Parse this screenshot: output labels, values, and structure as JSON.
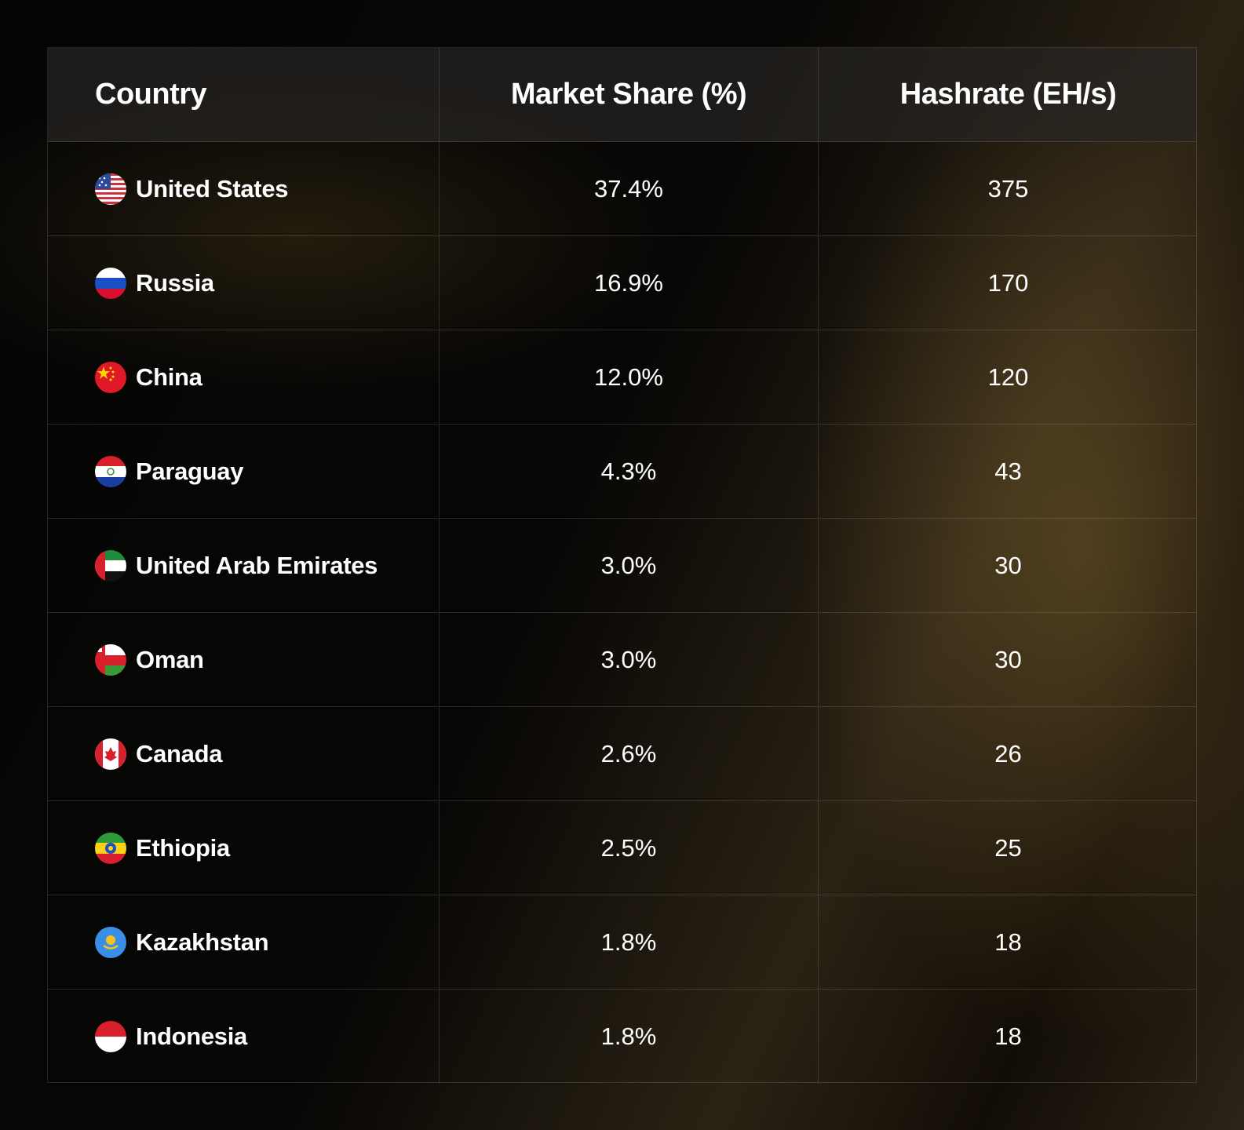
{
  "table": {
    "headers": [
      "Country",
      "Market Share (%)",
      "Hashrate (EH/s)"
    ],
    "rows": [
      [
        "United States",
        "37.4%",
        "375"
      ],
      [
        "Russia",
        "16.9%",
        "170"
      ],
      [
        "China",
        "12.0%",
        "120"
      ],
      [
        "Paraguay",
        "4.3%",
        "43"
      ],
      [
        "United Arab Emirates",
        "3.0%",
        "30"
      ],
      [
        "Oman",
        "3.0%",
        "30"
      ],
      [
        "Canada",
        "2.6%",
        "26"
      ],
      [
        "Ethiopia",
        "2.5%",
        "25"
      ],
      [
        "Kazakhstan",
        "1.8%",
        "18"
      ],
      [
        "Indonesia",
        "1.8%",
        "18"
      ]
    ]
  }
}
